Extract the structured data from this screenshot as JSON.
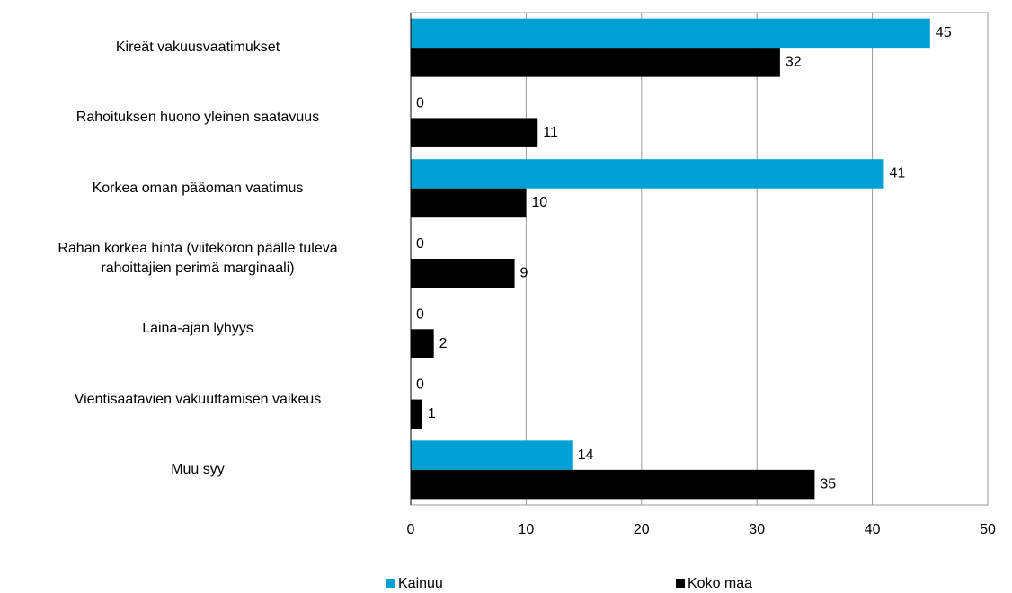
{
  "chart_data": {
    "type": "bar",
    "orientation": "horizontal",
    "categories": [
      "Kireät vakuusvaatimukset",
      "Rahoituksen huono yleinen saatavuus",
      "Korkea oman pääoman vaatimus",
      "Rahan korkea hinta (viitekoron päälle tuleva\nrahoittajien perimä marginaali)",
      "Laina-ajan lyhyys",
      "Vientisaatavien vakuuttamisen vaikeus",
      "Muu syy"
    ],
    "series": [
      {
        "name": "Kainuu",
        "color": "#00a0d2",
        "values": [
          45,
          0,
          41,
          0,
          0,
          0,
          14
        ]
      },
      {
        "name": "Koko maa",
        "color": "#000000",
        "values": [
          32,
          11,
          10,
          9,
          2,
          1,
          35
        ]
      }
    ],
    "xlim": [
      0,
      50
    ],
    "xticks": [
      0,
      10,
      20,
      30,
      40,
      50
    ],
    "grid": true,
    "legend": "bottom"
  }
}
